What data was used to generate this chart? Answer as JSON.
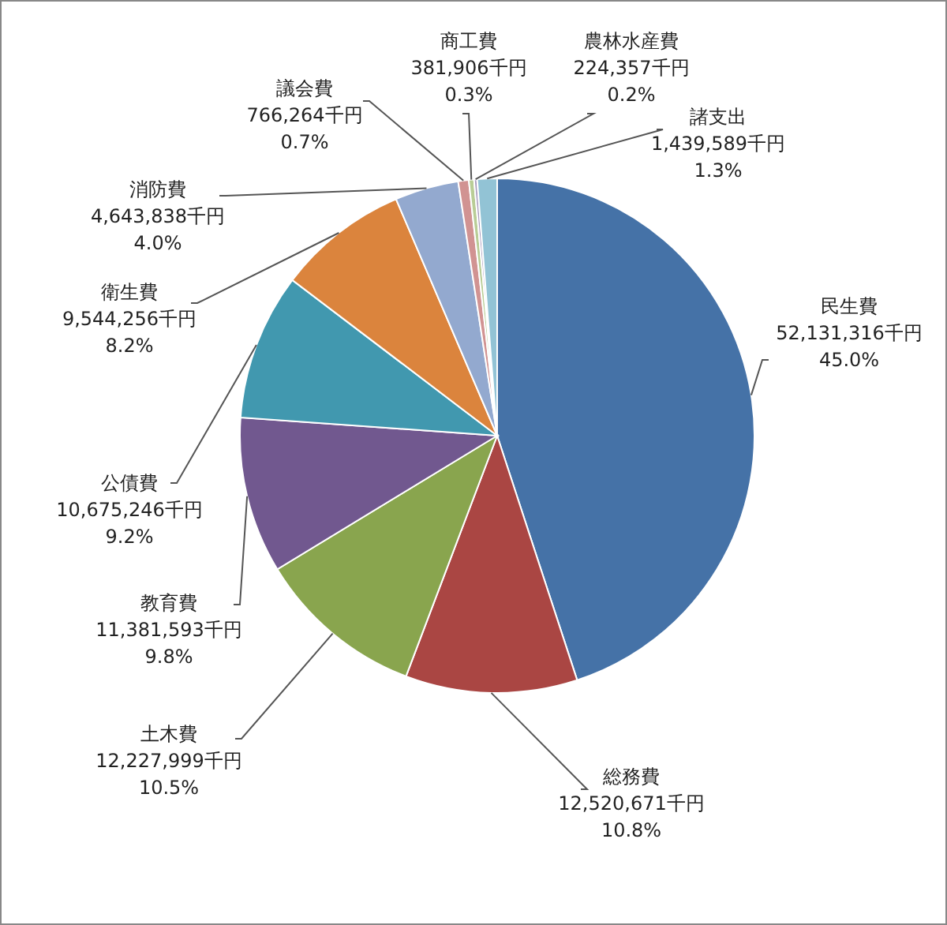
{
  "chart_data": {
    "type": "pie",
    "categories": [
      "民生費",
      "総務費",
      "土木費",
      "教育費",
      "公債費",
      "衛生費",
      "消防費",
      "議会費",
      "商工費",
      "農林水産費",
      "諸支出"
    ],
    "values": [
      52131316,
      12520671,
      12227999,
      11381593,
      10675246,
      9544256,
      4643838,
      766264,
      381906,
      224357,
      1439589
    ],
    "colors": [
      "#4572a7",
      "#aa4643",
      "#89a54e",
      "#71588f",
      "#4198af",
      "#db843d",
      "#93a9cf",
      "#d19392",
      "#b9cd96",
      "#a99bbd",
      "#92c3d5"
    ],
    "value_labels": [
      "52,131,316千円\n45.0%",
      "12,520,671千円\n10.8%",
      "12,227,999千円\n10.5%",
      "11,381,593千円\n9.8%",
      "10,675,246千円\n9.2%",
      "9,544,256千円\n8.2%",
      "4,643,838千円\n4.0%",
      "766,264千円\n0.7%",
      "381,906千円\n0.3%",
      "224,357千円\n0.2%",
      "1,439,589千円\n1.3%"
    ]
  }
}
